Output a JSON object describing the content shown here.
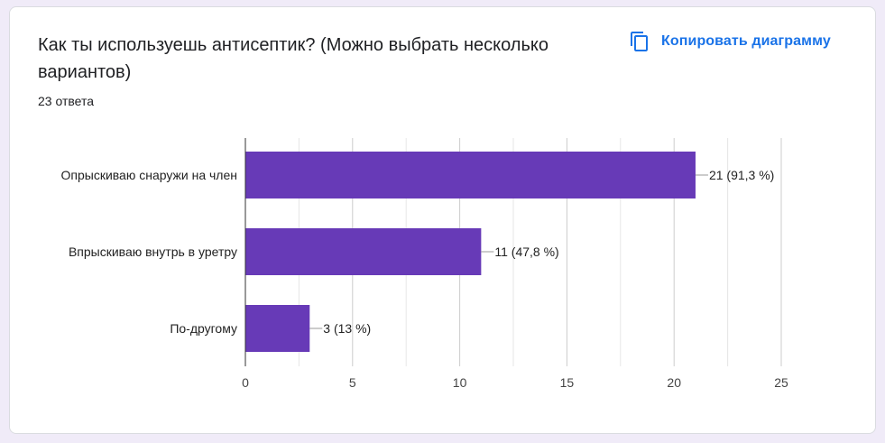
{
  "question": {
    "title": "Как ты используешь антисептик?  (Можно выбрать несколько вариантов)",
    "response_count": "23 ответа"
  },
  "actions": {
    "copy_chart_label": "Копировать диаграмму",
    "copy_icon": "copy-icon"
  },
  "colors": {
    "bar": "#673ab7",
    "accent": "#1a73e8",
    "grid": "#e6e6e6",
    "axis": "#333333",
    "background": "#f0ebf8"
  },
  "chart_data": {
    "type": "bar",
    "orientation": "horizontal",
    "categories": [
      "Опрыскиваю снаружи на член",
      "Впрыскиваю внутрь в уретру",
      "По-другому"
    ],
    "values": [
      21,
      11,
      3
    ],
    "data_labels": [
      "21 (91,3 %)",
      "11 (47,8 %)",
      "3 (13 %)"
    ],
    "xlim": [
      0,
      25
    ],
    "x_ticks": [
      0,
      5,
      10,
      15,
      20,
      25
    ],
    "grid": true,
    "title": "",
    "xlabel": "",
    "ylabel": ""
  }
}
